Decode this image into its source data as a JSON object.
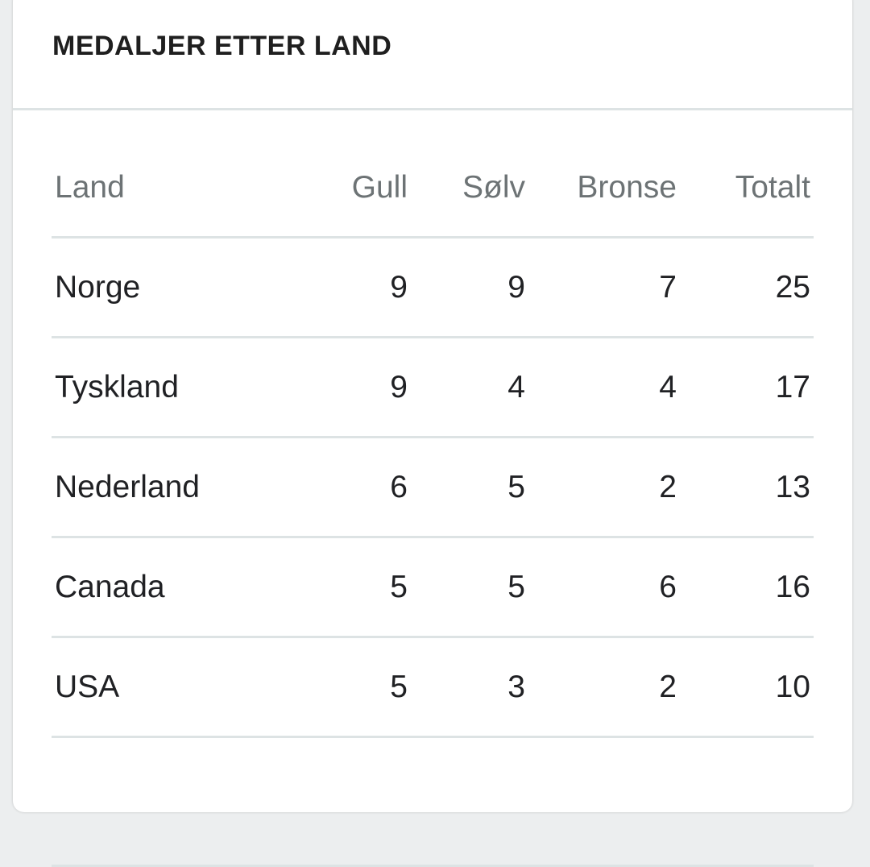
{
  "card": {
    "title": "MEDALJER ETTER LAND"
  },
  "table": {
    "headers": {
      "land": "Land",
      "gull": "Gull",
      "solv": "Sølv",
      "bronse": "Bronse",
      "totalt": "Totalt"
    },
    "rows": [
      {
        "land": "Norge",
        "gull": "9",
        "solv": "9",
        "bronse": "7",
        "totalt": "25"
      },
      {
        "land": "Tyskland",
        "gull": "9",
        "solv": "4",
        "bronse": "4",
        "totalt": "17"
      },
      {
        "land": "Nederland",
        "gull": "6",
        "solv": "5",
        "bronse": "2",
        "totalt": "13"
      },
      {
        "land": "Canada",
        "gull": "5",
        "solv": "5",
        "bronse": "6",
        "totalt": "16"
      },
      {
        "land": "USA",
        "gull": "5",
        "solv": "3",
        "bronse": "2",
        "totalt": "10"
      }
    ]
  }
}
